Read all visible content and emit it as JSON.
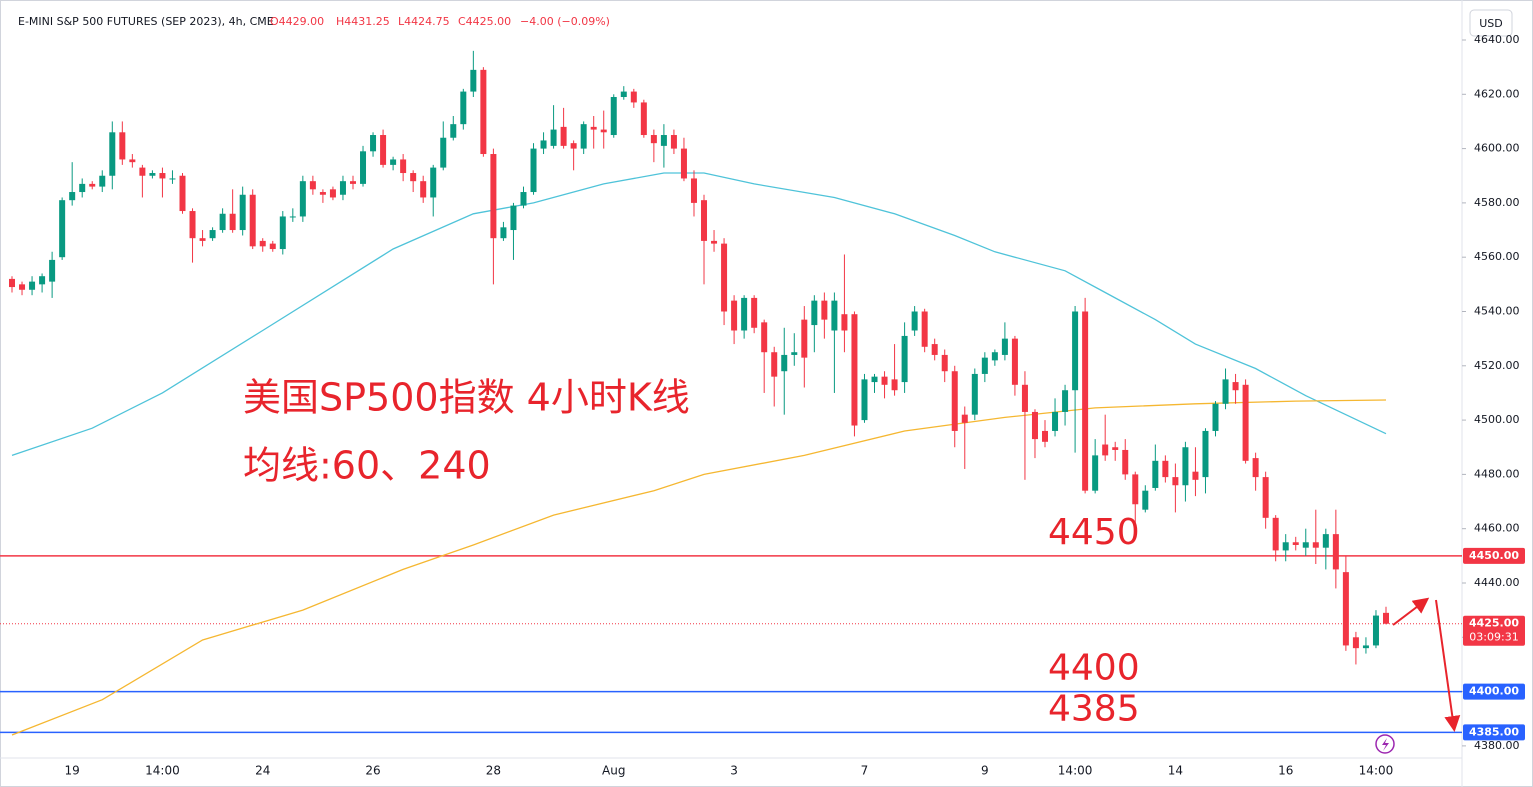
{
  "header": {
    "symbol": "E-MINI S&P 500 FUTURES (SEP 2023), 4h, CME",
    "ohlc": [
      "O4429.00",
      "H4431.25",
      "L4424.75",
      "C4425.00",
      "−4.00 (−0.09%)"
    ],
    "currency": "USD"
  },
  "chart_data": {
    "type": "candlestick",
    "title": "美国SP500指数 4小时K线",
    "subtitle": "均线:60、240",
    "categories": [
      null,
      null,
      null,
      null,
      null,
      null,
      "19",
      null,
      null,
      null,
      null,
      null,
      null,
      null,
      null,
      "14:00",
      null,
      null,
      null,
      null,
      null,
      null,
      null,
      null,
      null,
      "24",
      null,
      null,
      null,
      null,
      null,
      null,
      null,
      null,
      null,
      null,
      "26",
      null,
      null,
      null,
      null,
      null,
      null,
      null,
      null,
      null,
      null,
      null,
      "28",
      null,
      null,
      null,
      null,
      null,
      null,
      null,
      null,
      null,
      null,
      null,
      "Aug",
      null,
      null,
      null,
      null,
      null,
      null,
      null,
      null,
      null,
      null,
      null,
      "3",
      null,
      null,
      null,
      null,
      null,
      null,
      null,
      null,
      null,
      null,
      null,
      null,
      "7",
      null,
      null,
      null,
      null,
      null,
      null,
      null,
      null,
      null,
      null,
      null,
      "9",
      null,
      null,
      null,
      null,
      null,
      null,
      null,
      null,
      "14:00",
      null,
      null,
      null,
      null,
      null,
      null,
      null,
      null,
      null,
      "14",
      null,
      null,
      null,
      null,
      null,
      null,
      null,
      null,
      null,
      null,
      "16",
      null,
      null,
      null,
      null,
      null,
      null,
      null,
      null,
      "14:00",
      null
    ],
    "open": [
      4552,
      4550,
      4548,
      4550,
      4551,
      4560,
      4581,
      4584,
      4587,
      4586,
      4590,
      4606,
      4596,
      4593,
      4590,
      4591,
      4589,
      4590,
      4577,
      4567,
      4567,
      4570,
      4576,
      4570,
      4583,
      4566,
      4565,
      4563,
      4575,
      4575,
      4588,
      4584,
      4585,
      4583,
      4588,
      4587,
      4599,
      4605,
      4594,
      4596,
      4591,
      4588,
      4582,
      4593,
      4604,
      4609,
      4621,
      4629,
      4598,
      4567,
      4570,
      4579,
      4584,
      4600,
      4601,
      4608,
      4602,
      4600,
      4608,
      4607,
      4605,
      4619,
      4621,
      4617,
      4605,
      4601,
      4605,
      4600,
      4589,
      4581,
      4566,
      4565,
      4544,
      4533,
      4545,
      4536,
      4525,
      4518,
      4524,
      4537,
      4535,
      4544,
      4533,
      4539,
      4539,
      4500,
      4514,
      4516,
      4515,
      4514,
      4533,
      4540,
      4528,
      4524,
      4518,
      4502,
      4502,
      4517,
      4522,
      4524,
      4530,
      4513,
      4503,
      4496,
      4496,
      4503,
      4511,
      4540,
      4474,
      4491,
      4490,
      4489,
      4480,
      4467,
      4475,
      4485,
      4479,
      4476,
      4481,
      4479,
      4496,
      4506,
      4514,
      4513,
      4486,
      4479,
      4464,
      4452,
      4455,
      4453,
      4455,
      4453,
      4458,
      4444,
      4420,
      4416,
      4417,
      4429
    ],
    "high": [
      4553,
      4551,
      4553,
      4554,
      4562,
      4582,
      4595,
      4589,
      4588,
      4592,
      4610,
      4610,
      4598,
      4594,
      4592,
      4593,
      4592,
      4591,
      4578,
      4570,
      4571,
      4578,
      4585,
      4586,
      4585,
      4567,
      4566,
      4577,
      4578,
      4590,
      4590,
      4585,
      4586,
      4590,
      4590,
      4601,
      4606,
      4607,
      4597,
      4598,
      4592,
      4590,
      4594,
      4610,
      4612,
      4622,
      4636,
      4630,
      4600,
      4573,
      4580,
      4586,
      4602,
      4606,
      4616,
      4615,
      4603,
      4610,
      4612,
      4614,
      4620,
      4623,
      4622,
      4618,
      4607,
      4609,
      4607,
      4604,
      4592,
      4583,
      4570,
      4567,
      4546,
      4546,
      4546,
      4537,
      4527,
      4534,
      4532,
      4542,
      4546,
      4547,
      4547,
      4561,
      4540,
      4517,
      4517,
      4518,
      4528,
      4536,
      4542,
      4541,
      4530,
      4526,
      4520,
      4505,
      4519,
      4525,
      4526,
      4536,
      4531,
      4518,
      4504,
      4500,
      4508,
      4513,
      4542,
      4545,
      4493,
      4502,
      4492,
      4493,
      4481,
      4476,
      4491,
      4487,
      4484,
      4492,
      4490,
      4497,
      4507,
      4519,
      4517,
      4515,
      4488,
      4481,
      4465,
      4458,
      4457,
      4460,
      4467,
      4460,
      4467,
      4450,
      4422,
      4420,
      4430,
      4431.25
    ],
    "low": [
      4547,
      4546,
      4546,
      4547,
      4545,
      4559,
      4579,
      4582,
      4585,
      4584,
      4585,
      4594,
      4593,
      4582,
      4589,
      4582,
      4587,
      4576,
      4558,
      4564,
      4566,
      4569,
      4569,
      4568,
      4563,
      4562,
      4562,
      4561,
      4573,
      4573,
      4583,
      4580,
      4581,
      4581,
      4585,
      4586,
      4597,
      4593,
      4592,
      4588,
      4584,
      4580,
      4575,
      4592,
      4603,
      4607,
      4619,
      4597,
      4550,
      4566,
      4559,
      4578,
      4583,
      4598,
      4600,
      4600,
      4592,
      4598,
      4600,
      4600,
      4604,
      4618,
      4615,
      4604,
      4595,
      4593,
      4598,
      4588,
      4575,
      4550,
      4562,
      4535,
      4528,
      4530,
      4532,
      4510,
      4505,
      4502,
      4520,
      4512,
      4525,
      4530,
      4510,
      4525,
      4494,
      4499,
      4510,
      4508,
      4509,
      4510,
      4531,
      4525,
      4522,
      4514,
      4490,
      4482,
      4500,
      4514,
      4520,
      4522,
      4509,
      4478,
      4486,
      4490,
      4494,
      4498,
      4488,
      4473,
      4473,
      4485,
      4485,
      4478,
      4458,
      4466,
      4474,
      4477,
      4466,
      4470,
      4472,
      4473,
      4494,
      4504,
      4506,
      4484,
      4474,
      4460,
      4448,
      4448,
      4452,
      4450,
      4447,
      4445,
      4438,
      4415,
      4410,
      4414,
      4416,
      4424.75
    ],
    "close": [
      4549,
      4548,
      4551,
      4553,
      4559,
      4581,
      4584,
      4587,
      4586,
      4590,
      4606,
      4596,
      4595,
      4590,
      4591,
      4589,
      4589,
      4577,
      4567,
      4566,
      4570,
      4576,
      4570,
      4583,
      4564,
      4564,
      4563,
      4575,
      4575,
      4588,
      4585,
      4583,
      4582,
      4588,
      4587,
      4599,
      4605,
      4594,
      4596,
      4591,
      4588,
      4582,
      4593,
      4604,
      4609,
      4621,
      4629,
      4598,
      4567,
      4571,
      4579,
      4584,
      4600,
      4603,
      4607,
      4601,
      4600,
      4609,
      4607,
      4606,
      4619,
      4621,
      4617,
      4605,
      4602,
      4605,
      4600,
      4589,
      4580,
      4566,
      4565,
      4540,
      4533,
      4545,
      4534,
      4525,
      4516,
      4524,
      4525,
      4523,
      4544,
      4537,
      4544,
      4533,
      4498,
      4515,
      4516,
      4513,
      4511,
      4531,
      4540,
      4527,
      4524,
      4518,
      4496,
      4499,
      4517,
      4523,
      4525,
      4530,
      4513,
      4503,
      4493,
      4492,
      4503,
      4511,
      4540,
      4474,
      4487,
      4487,
      4489,
      4480,
      4469,
      4474,
      4485,
      4479,
      4476,
      4490,
      4478,
      4496,
      4506,
      4515,
      4511,
      4485,
      4479,
      4464,
      4452,
      4455,
      4454,
      4455,
      4453,
      4458,
      4445,
      4417,
      4416,
      4417,
      4428,
      4425
    ],
    "up_color": "#089981",
    "down_color": "#f23645",
    "lines": [
      {
        "color": "#4fc3d9",
        "x": [
          0,
          8,
          15,
          25,
          38,
          46,
          52,
          59,
          65,
          69,
          74,
          82,
          88,
          94,
          98,
          105,
          109,
          114,
          118,
          124,
          129,
          133,
          137
        ],
        "values": [
          4487,
          4497,
          4510,
          4533,
          4563,
          4576,
          4580,
          4587,
          4591,
          4591,
          4587,
          4582,
          4576,
          4568,
          4562,
          4555,
          4547,
          4537,
          4528,
          4519,
          4509,
          4502,
          4495
        ]
      },
      {
        "color": "#f5b731",
        "x": [
          0,
          9,
          19,
          29,
          39,
          46,
          54,
          64,
          69,
          79,
          89,
          99,
          108,
          118,
          128,
          137
        ],
        "values": [
          4384,
          4397,
          4419,
          4430,
          4445,
          4454,
          4465,
          4474,
          4480,
          4487,
          4496,
          4501,
          4504.5,
          4506,
          4507,
          4507.4
        ]
      }
    ],
    "ylim": [
      4375.54,
      4654.73
    ],
    "yticks": [
      {
        "value": 4380,
        "label": "4380.00"
      },
      {
        "value": 4400,
        "label": "4400.00"
      },
      {
        "value": 4420,
        "label": "4420.00"
      },
      {
        "value": 4440,
        "label": "4440.00"
      },
      {
        "value": 4460,
        "label": "4460.00"
      },
      {
        "value": 4480,
        "label": "4480.00"
      },
      {
        "value": 4500,
        "label": "4500.00"
      },
      {
        "value": 4520,
        "label": "4520.00"
      },
      {
        "value": 4540,
        "label": "4540.00"
      },
      {
        "value": 4560,
        "label": "4560.00"
      },
      {
        "value": 4580,
        "label": "4580.00"
      },
      {
        "value": 4600,
        "label": "4600.00"
      },
      {
        "value": 4620,
        "label": "4620.00"
      },
      {
        "value": 4640,
        "label": "4640.00"
      }
    ],
    "grid": false,
    "hlines": [
      {
        "value": 4450,
        "label": "4450.00",
        "color": "#f23645"
      },
      {
        "value": 4400,
        "label": "4400.00",
        "color": "#2962ff"
      },
      {
        "value": 4385,
        "label": "4385.00",
        "color": "#2962ff"
      }
    ],
    "last_price": {
      "value": 4425,
      "label": "4425.00",
      "countdown": "03:09:31",
      "color": "#f23645"
    }
  }
}
